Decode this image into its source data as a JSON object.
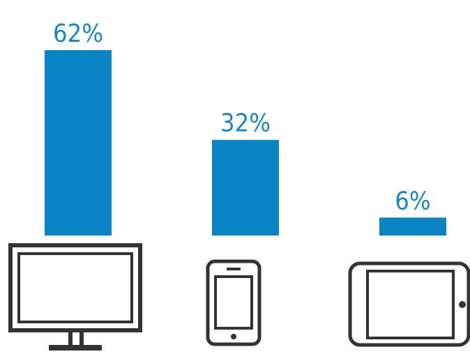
{
  "chart_data": {
    "type": "bar",
    "categories": [
      "desktop",
      "smartphone",
      "tablet"
    ],
    "values": [
      62,
      32,
      6
    ],
    "labels": [
      "62%",
      "32%",
      "6%"
    ],
    "unit": "%",
    "ylim": [
      0,
      62
    ],
    "category_icons": [
      "desktop-monitor-icon",
      "smartphone-icon",
      "tablet-icon"
    ],
    "bar_color": "#0b84c6",
    "label_color": "#1a86c8",
    "icon_color": "#333333",
    "grid": false,
    "legend": "none"
  }
}
